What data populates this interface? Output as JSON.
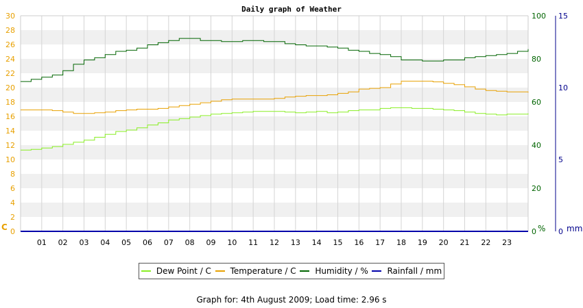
{
  "chart_data": {
    "type": "line",
    "title": "Daily graph of Weather",
    "x_ticks": [
      "01",
      "02",
      "03",
      "04",
      "05",
      "06",
      "07",
      "08",
      "09",
      "10",
      "11",
      "12",
      "13",
      "14",
      "15",
      "16",
      "17",
      "18",
      "19",
      "20",
      "21",
      "22",
      "23"
    ],
    "xlim": [
      0,
      24
    ],
    "grid": true,
    "axes": {
      "temp": {
        "unit_label": "C",
        "ylim": [
          0,
          30
        ],
        "ticks": [
          0,
          2,
          4,
          6,
          8,
          10,
          12,
          14,
          16,
          18,
          20,
          22,
          24,
          26,
          28,
          30
        ],
        "color": "#e8a000"
      },
      "humidity": {
        "unit_label": "%",
        "ylim": [
          0,
          100
        ],
        "ticks": [
          0,
          20,
          40,
          60,
          80,
          100
        ],
        "color": "#006400"
      },
      "rain": {
        "unit_label": "mm",
        "ylim": [
          0,
          15
        ],
        "ticks": [
          0,
          5,
          10,
          15
        ],
        "color": "#00008b"
      }
    },
    "series": [
      {
        "name": "Dew Point / C",
        "axis": "temp",
        "color": "#88ee22",
        "x": [
          0,
          0.5,
          1,
          1.5,
          2,
          2.5,
          3,
          3.5,
          4,
          4.5,
          5,
          5.5,
          6,
          6.5,
          7,
          7.5,
          8,
          8.5,
          9,
          9.5,
          10,
          10.5,
          11,
          11.5,
          12,
          12.5,
          13,
          13.5,
          14,
          14.5,
          15,
          15.5,
          16,
          16.5,
          17,
          17.5,
          18,
          18.5,
          19,
          19.5,
          20,
          20.5,
          21,
          21.5,
          22,
          22.5,
          23,
          23.5,
          24
        ],
        "values": [
          11.3,
          11.4,
          11.6,
          11.8,
          12.1,
          12.4,
          12.7,
          13.1,
          13.5,
          13.9,
          14.1,
          14.4,
          14.8,
          15.1,
          15.5,
          15.7,
          15.9,
          16.1,
          16.3,
          16.4,
          16.5,
          16.6,
          16.7,
          16.7,
          16.7,
          16.6,
          16.5,
          16.6,
          16.7,
          16.5,
          16.6,
          16.8,
          16.9,
          16.9,
          17.1,
          17.2,
          17.2,
          17.1,
          17.1,
          17.0,
          16.9,
          16.8,
          16.6,
          16.4,
          16.3,
          16.2,
          16.3,
          16.3,
          16.4
        ]
      },
      {
        "name": "Temperature / C",
        "axis": "temp",
        "color": "#e8a000",
        "x": [
          0,
          0.5,
          1,
          1.5,
          2,
          2.5,
          3,
          3.5,
          4,
          4.5,
          5,
          5.5,
          6,
          6.5,
          7,
          7.5,
          8,
          8.5,
          9,
          9.5,
          10,
          10.5,
          11,
          11.5,
          12,
          12.5,
          13,
          13.5,
          14,
          14.5,
          15,
          15.5,
          16,
          16.5,
          17,
          17.5,
          18,
          18.5,
          19,
          19.5,
          20,
          20.5,
          21,
          21.5,
          22,
          22.5,
          23,
          23.5,
          24
        ],
        "values": [
          16.9,
          16.9,
          16.9,
          16.8,
          16.6,
          16.4,
          16.4,
          16.5,
          16.6,
          16.8,
          16.9,
          17.0,
          17.0,
          17.1,
          17.3,
          17.5,
          17.7,
          17.9,
          18.1,
          18.3,
          18.4,
          18.4,
          18.4,
          18.4,
          18.5,
          18.7,
          18.8,
          18.9,
          18.9,
          19.0,
          19.2,
          19.4,
          19.8,
          19.9,
          20.0,
          20.5,
          20.9,
          20.9,
          20.9,
          20.8,
          20.6,
          20.4,
          20.1,
          19.8,
          19.6,
          19.5,
          19.4,
          19.4,
          19.3
        ]
      },
      {
        "name": "Humidity / %",
        "axis": "humidity",
        "color": "#006400",
        "x": [
          0,
          0.5,
          1,
          1.5,
          2,
          2.5,
          3,
          3.5,
          4,
          4.5,
          5,
          5.5,
          6,
          6.5,
          7,
          7.5,
          8,
          8.5,
          9,
          9.5,
          10,
          10.5,
          11,
          11.5,
          12,
          12.5,
          13,
          13.5,
          14,
          14.5,
          15,
          15.5,
          16,
          16.5,
          17,
          17.5,
          18,
          18.5,
          19,
          19.5,
          20,
          20.5,
          21,
          21.5,
          22,
          22.5,
          23,
          23.5,
          24
        ],
        "values": [
          69.5,
          70.5,
          71.5,
          72.5,
          74.5,
          77.5,
          79.5,
          80.5,
          82.0,
          83.5,
          84.0,
          85.0,
          86.5,
          87.5,
          88.5,
          89.5,
          89.5,
          88.5,
          88.5,
          88.0,
          88.0,
          88.5,
          88.5,
          88.0,
          88.0,
          87.0,
          86.5,
          86.0,
          86.0,
          85.5,
          85.0,
          84.0,
          83.5,
          82.5,
          82.0,
          81.0,
          79.5,
          79.5,
          79.0,
          79.0,
          79.5,
          79.5,
          80.5,
          81.0,
          81.5,
          82.0,
          82.5,
          83.5,
          84.5
        ]
      },
      {
        "name": "Rainfall / mm",
        "axis": "rain",
        "color": "#0000aa",
        "x": [
          0,
          24
        ],
        "values": [
          0,
          0
        ]
      }
    ]
  },
  "footer": "Graph for: 4th August 2009; Load time: 2.96 s"
}
